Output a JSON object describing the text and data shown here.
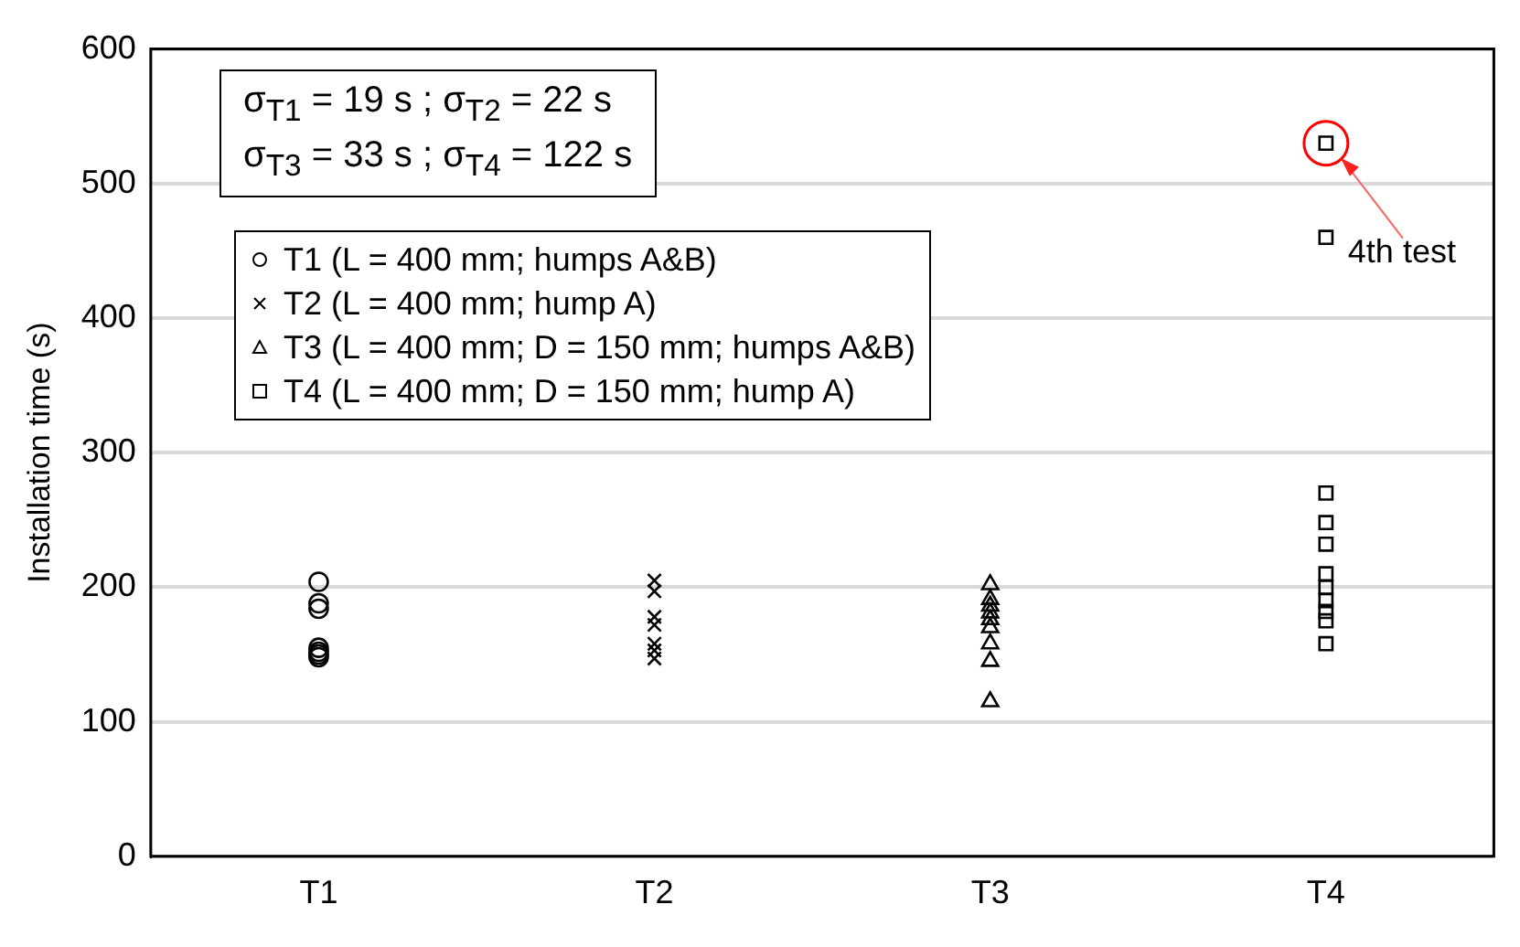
{
  "chart_data": {
    "type": "scatter",
    "ylabel": "Installation time (s)",
    "categories": [
      "T1",
      "T2",
      "T3",
      "T4"
    ],
    "ylim": [
      0,
      600
    ],
    "yticks": [
      0,
      100,
      200,
      300,
      400,
      500,
      600
    ],
    "grid": "y",
    "legend": "top left",
    "annotations": [
      "σ$_{T1}$ = 19 s ; σ$_{T2}$ = 22 s",
      "σ$_{T3}$ = 33 s ; σ$_{T4}$ = 122 s",
      {
        "text": "4th test",
        "x": "T4",
        "y": 530
      }
    ],
    "series": [
      {
        "name": "T1 (L = 400 mm; humps A&B)",
        "marker": "circle",
        "color": "#000000",
        "x": [
          "T1",
          "T1",
          "T1",
          "T1",
          "T1",
          "T1",
          "T1"
        ],
        "values": [
          204,
          188,
          184,
          155,
          152,
          150,
          148
        ]
      },
      {
        "name": "T2 (L = 400 mm; hump A)",
        "marker": "cross",
        "color": "#000000",
        "x": [
          "T2",
          "T2",
          "T2",
          "T2",
          "T2",
          "T2",
          "T2"
        ],
        "values": [
          205,
          197,
          178,
          172,
          158,
          153,
          147
        ]
      },
      {
        "name": "T3 (L = 400 mm; D = 150 mm; humps A&B)",
        "marker": "triangle",
        "color": "#000000",
        "x": [
          "T3",
          "T3",
          "T3",
          "T3",
          "T3",
          "T3",
          "T3",
          "T3",
          "T3"
        ],
        "values": [
          202,
          191,
          186,
          181,
          176,
          170,
          158,
          145,
          115
        ]
      },
      {
        "name": "T4 (L = 400 mm; D = 150 mm; hump A)",
        "marker": "square",
        "color": "#000000",
        "x": [
          "T4",
          "T4",
          "T4",
          "T4",
          "T4",
          "T4",
          "T4",
          "T4",
          "T4",
          "T4",
          "T4"
        ],
        "values": [
          530,
          460,
          270,
          248,
          232,
          210,
          200,
          190,
          182,
          175,
          158
        ]
      }
    ]
  }
}
